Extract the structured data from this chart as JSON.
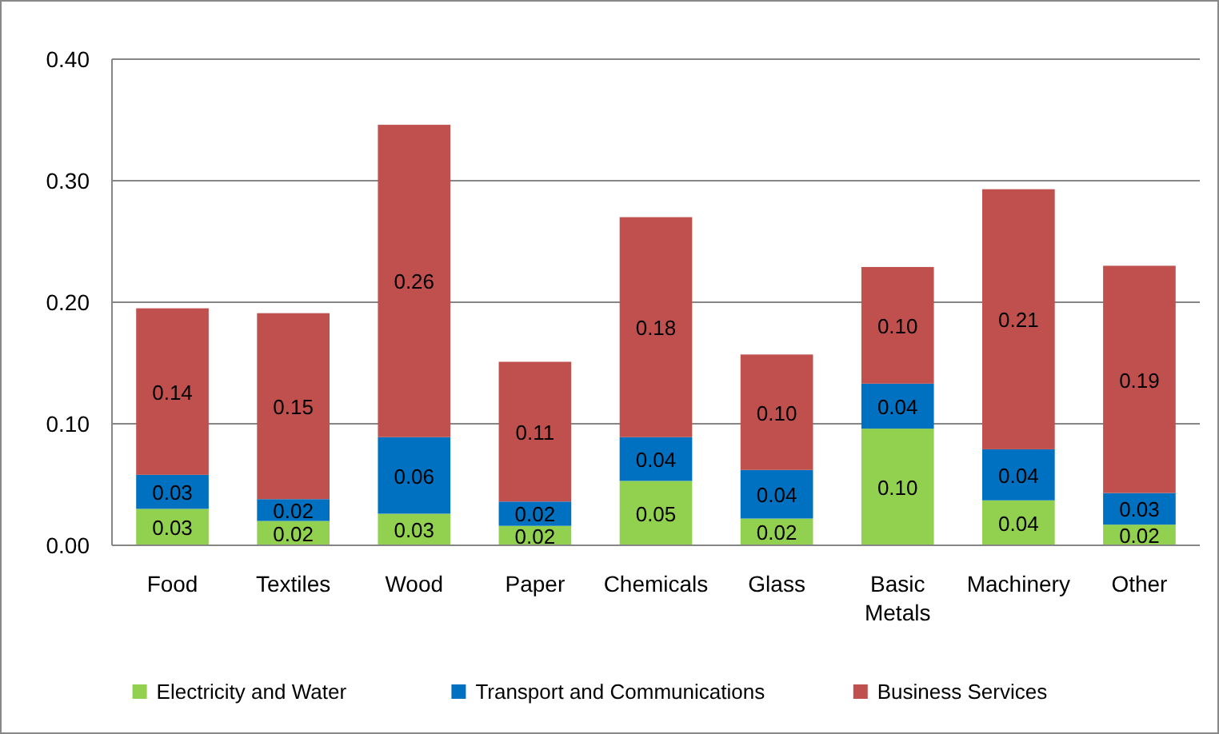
{
  "chart_data": {
    "type": "bar",
    "stacked": true,
    "categories": [
      "Food",
      "Textiles",
      "Wood",
      "Paper",
      "Chemicals",
      "Glass",
      "Basic Metals",
      "Machinery",
      "Other"
    ],
    "series": [
      {
        "name": "Electricity and Water",
        "color": "#92d050",
        "values": [
          0.03,
          0.02,
          0.026,
          0.016,
          0.053,
          0.022,
          0.096,
          0.037,
          0.017
        ],
        "value_labels": [
          "0.03",
          "0.02",
          "0.03",
          "0.02",
          "0.05",
          "0.02",
          "0.10",
          "0.04",
          "0.02"
        ]
      },
      {
        "name": "Transport and Communications",
        "color": "#0070c0",
        "values": [
          0.028,
          0.018,
          0.063,
          0.02,
          0.036,
          0.04,
          0.037,
          0.042,
          0.026
        ],
        "value_labels": [
          "0.03",
          "0.02",
          "0.06",
          "0.02",
          "0.04",
          "0.04",
          "0.04",
          "0.04",
          "0.03"
        ]
      },
      {
        "name": "Business Services",
        "color": "#c0504d",
        "values": [
          0.137,
          0.153,
          0.257,
          0.115,
          0.181,
          0.095,
          0.096,
          0.214,
          0.187
        ],
        "value_labels": [
          "0.14",
          "0.15",
          "0.26",
          "0.11",
          "0.18",
          "0.10",
          "0.10",
          "0.21",
          "0.19"
        ]
      }
    ],
    "ylim": [
      0,
      0.4
    ],
    "yticks": [
      {
        "value": 0,
        "label": "0.00"
      },
      {
        "value": 0.1,
        "label": "0.10"
      },
      {
        "value": 0.2,
        "label": "0.20"
      },
      {
        "value": 0.3,
        "label": "0.30"
      },
      {
        "value": 0.4,
        "label": "0.40"
      }
    ],
    "grid": "y",
    "legend": "bottom"
  }
}
